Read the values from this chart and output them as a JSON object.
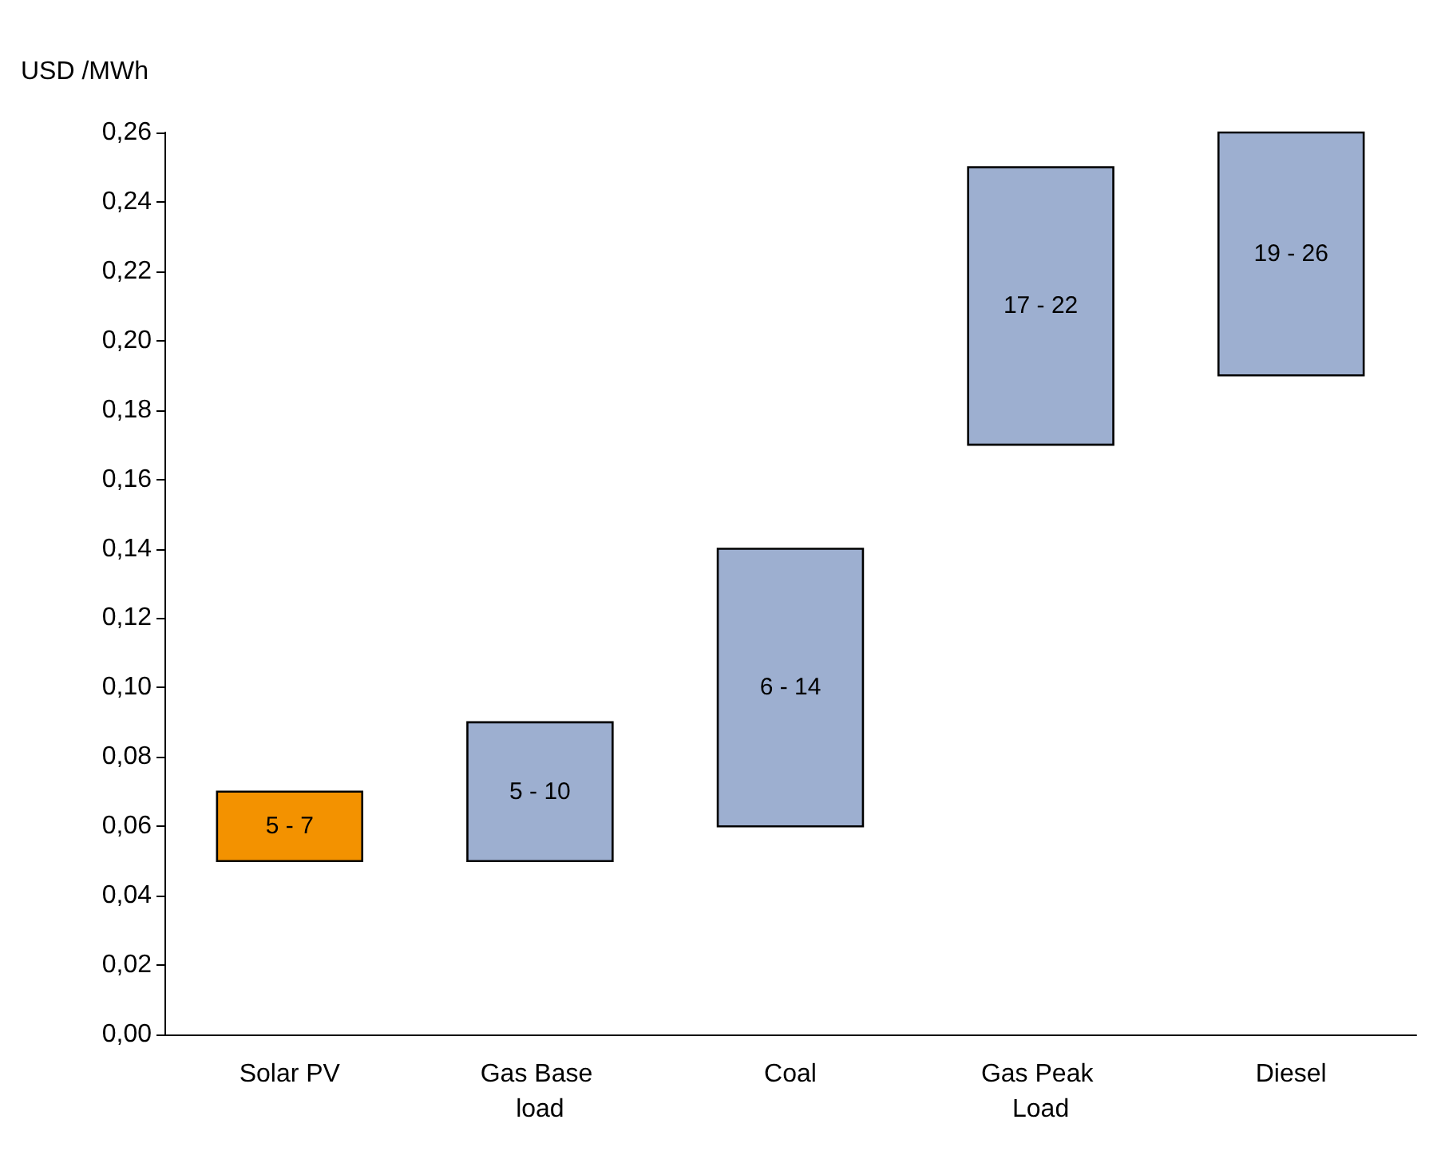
{
  "chart_data": {
    "type": "bar",
    "ylabel": "USD /MWh",
    "categories": [
      "Solar PV",
      "Gas Base load",
      "Coal",
      "Gas Peak Load",
      "Diesel"
    ],
    "base": [
      0.05,
      0.05,
      0.06,
      0.17,
      0.19
    ],
    "values": [
      0.02,
      0.04,
      0.08,
      0.08,
      0.07
    ],
    "annotations": [
      "5 - 7",
      "5 - 10",
      "6 - 14",
      "17 - 22",
      "19 - 26"
    ],
    "colors": [
      "#f39200",
      "#9dafd0",
      "#9dafd0",
      "#9dafd0",
      "#9dafd0"
    ],
    "ylim": [
      0,
      0.26
    ],
    "yticks": [
      {
        "value": 0,
        "label": "0,00"
      },
      {
        "value": 0.02,
        "label": "0,02"
      },
      {
        "value": 0.04,
        "label": "0,04"
      },
      {
        "value": 0.06,
        "label": "0,06"
      },
      {
        "value": 0.08,
        "label": "0,08"
      },
      {
        "value": 0.1,
        "label": "0,10"
      },
      {
        "value": 0.12,
        "label": "0,12"
      },
      {
        "value": 0.14,
        "label": "0,14"
      },
      {
        "value": 0.16,
        "label": "0,16"
      },
      {
        "value": 0.18,
        "label": "0,18"
      },
      {
        "value": 0.2,
        "label": "0,20"
      },
      {
        "value": 0.22,
        "label": "0,22"
      },
      {
        "value": 0.24,
        "label": "0,24"
      },
      {
        "value": 0.26,
        "label": "0,26"
      }
    ],
    "grid": false
  }
}
